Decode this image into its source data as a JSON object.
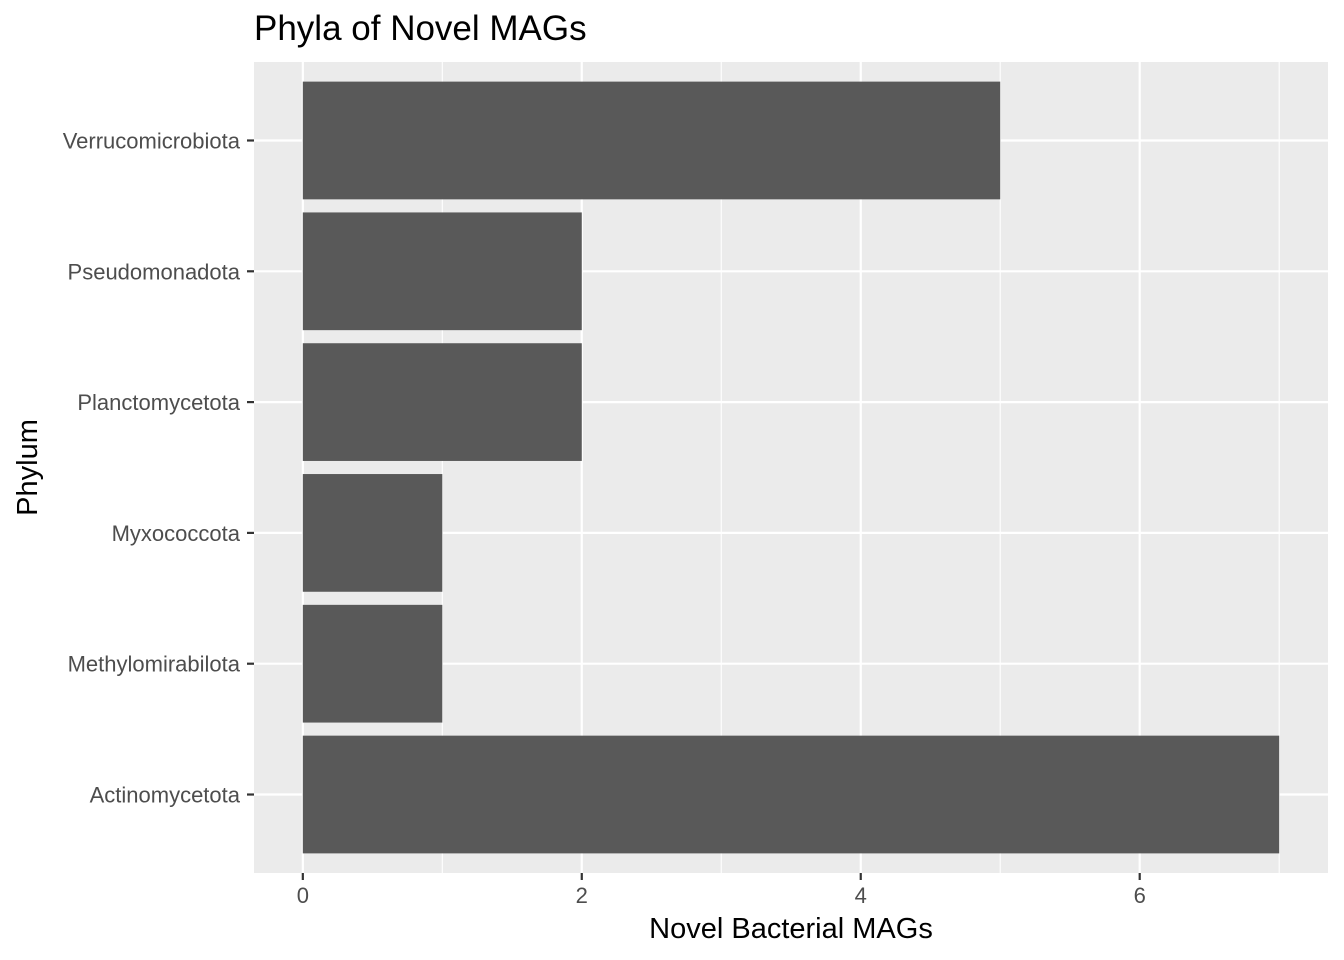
{
  "chart_data": {
    "type": "bar",
    "orientation": "horizontal",
    "title": "Phyla of Novel MAGs",
    "xlabel": "Novel Bacterial MAGs",
    "ylabel": "Phylum",
    "categories": [
      "Actinomycetota",
      "Methylomirabilota",
      "Myxococcota",
      "Planctomycetota",
      "Pseudomonadota",
      "Verrucomicrobiota"
    ],
    "values": [
      7,
      1,
      1,
      2,
      2,
      5
    ],
    "xlim": [
      -0.35,
      7.35
    ],
    "xticks": [
      0,
      2,
      4,
      6
    ],
    "grid": true,
    "legend": "none",
    "colors": {
      "panel_background": "#ebebeb",
      "grid_major": "#ffffff",
      "bar_fill": "#595959",
      "tick_mark": "#333333"
    }
  }
}
